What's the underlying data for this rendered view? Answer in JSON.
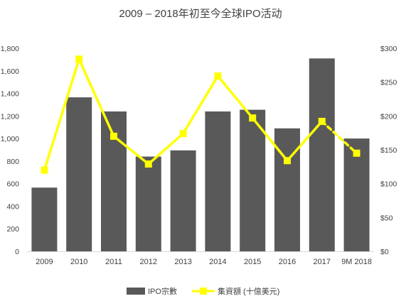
{
  "chart_data": {
    "type": "bar",
    "title": "2009 – 2018年初至今全球IPO活动",
    "categories": [
      "2009",
      "2010",
      "2011",
      "2012",
      "2013",
      "2014",
      "2015",
      "2016",
      "2017",
      "9M 2018"
    ],
    "series": [
      {
        "name": "IPO宗數",
        "type": "bar",
        "axis": "left",
        "color": "#595959",
        "values": [
          565,
          1365,
          1240,
          840,
          895,
          1240,
          1255,
          1090,
          1710,
          1000
        ]
      },
      {
        "name": "集資額 (十億美元)",
        "type": "line",
        "axis": "right",
        "color": "#FFFF00",
        "dashed_last_segment": true,
        "values": [
          120,
          284,
          170,
          129,
          174,
          259,
          197,
          134,
          192,
          145
        ]
      }
    ],
    "y_left": {
      "range": [
        0,
        1800
      ],
      "ticks": [
        0,
        200,
        400,
        600,
        800,
        1000,
        1200,
        1400,
        1600,
        1800
      ],
      "tick_labels": [
        "0",
        "200",
        "400",
        "600",
        "800",
        "1,000",
        "1,200",
        "1,400",
        "1,600",
        "1,800"
      ]
    },
    "y_right": {
      "range": [
        0,
        300
      ],
      "ticks": [
        0,
        50,
        100,
        150,
        200,
        250,
        300
      ],
      "tick_labels": [
        "$0",
        "$50",
        "$100",
        "$150",
        "$200",
        "$250",
        "$300"
      ]
    },
    "grid": false,
    "legend_position": "bottom"
  }
}
